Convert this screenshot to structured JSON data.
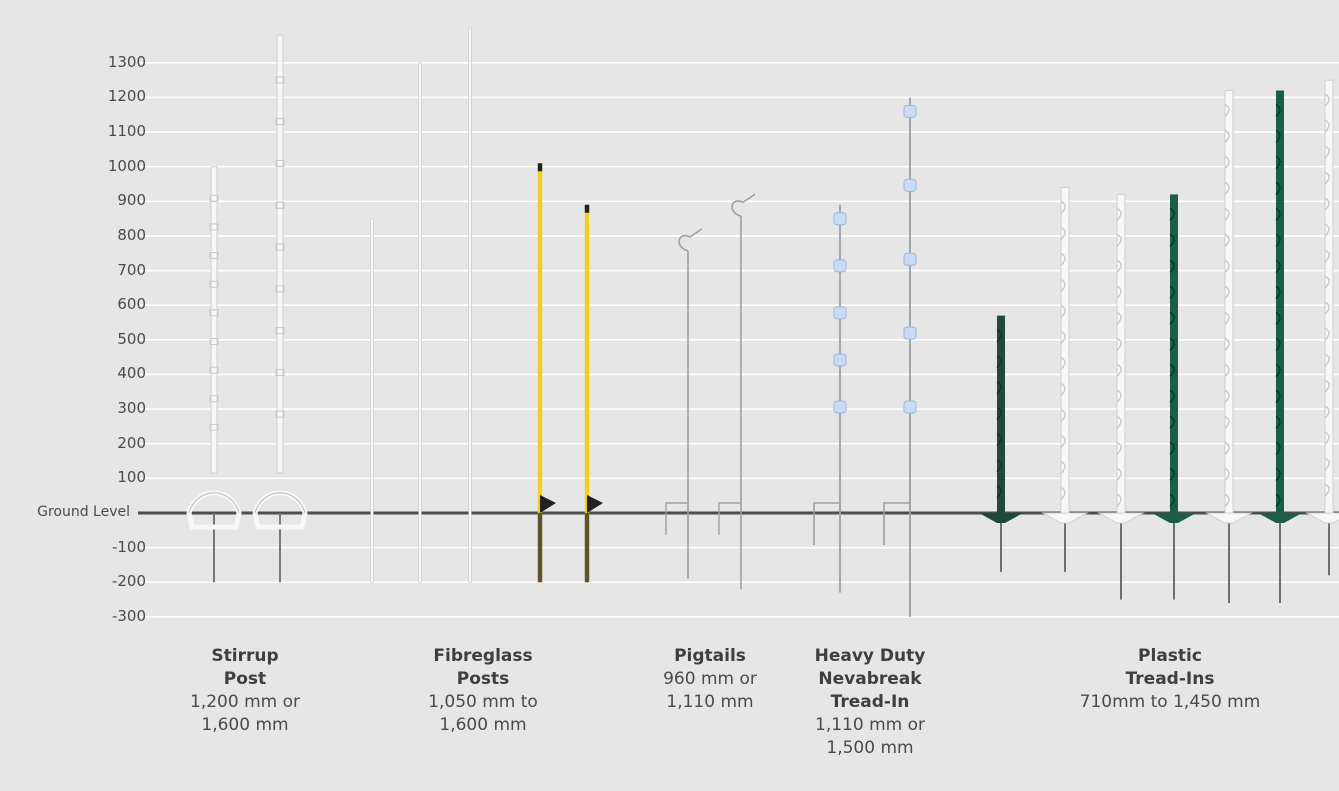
{
  "axis": {
    "ticks": [
      {
        "value": 1300,
        "label": "1300"
      },
      {
        "value": 1200,
        "label": "1200"
      },
      {
        "value": 1100,
        "label": "1100"
      },
      {
        "value": 1000,
        "label": "1000"
      },
      {
        "value": 900,
        "label": "900"
      },
      {
        "value": 800,
        "label": "800"
      },
      {
        "value": 700,
        "label": "700"
      },
      {
        "value": 600,
        "label": "600"
      },
      {
        "value": 500,
        "label": "500"
      },
      {
        "value": 400,
        "label": "400"
      },
      {
        "value": 300,
        "label": "300"
      },
      {
        "value": 200,
        "label": "200"
      },
      {
        "value": 100,
        "label": "100"
      },
      {
        "value": 0,
        "label": "Ground Level"
      },
      {
        "value": -100,
        "label": "-100"
      },
      {
        "value": -200,
        "label": "-200"
      },
      {
        "value": -300,
        "label": "-300"
      }
    ],
    "unit": "mm"
  },
  "colors": {
    "background": "#e6e6e6",
    "gridline": "#ffffff",
    "ground_line": "#4a4d52",
    "post_white": "#f7f7f7",
    "post_yellow": "#f2cf1d",
    "post_dark_green": "#1f4a3a",
    "post_green": "#1b5e47",
    "wire": "#9aa0a6",
    "insulator": "#c9dcf7"
  },
  "categories": [
    {
      "name_lines": [
        "Stirrup",
        "Post"
      ],
      "size_lines": [
        "1,200 mm or",
        "1,600 mm"
      ]
    },
    {
      "name_lines": [
        "Fibreglass",
        "Posts"
      ],
      "size_lines": [
        "1,050 mm to",
        "1,600 mm"
      ]
    },
    {
      "name_lines": [
        "Pigtails"
      ],
      "size_lines": [
        "960 mm or",
        "1,110 mm"
      ]
    },
    {
      "name_lines": [
        "Heavy Duty",
        "Nevabreak",
        "Tread-In"
      ],
      "size_lines": [
        "1,110 mm or",
        "1,500 mm"
      ]
    },
    {
      "name_lines": [
        "Plastic",
        "Tread-Ins"
      ],
      "size_lines": [
        "710mm to 1,450 mm"
      ]
    }
  ],
  "posts": [
    {
      "type": "stirrup",
      "color": "post_white",
      "top_mm": 1000,
      "bottom_mm": -200
    },
    {
      "type": "stirrup",
      "color": "post_white",
      "top_mm": 1380,
      "bottom_mm": -200
    },
    {
      "type": "fibreglass",
      "color": "post_white",
      "top_mm": 850,
      "bottom_mm": -200
    },
    {
      "type": "fibreglass",
      "color": "post_white",
      "top_mm": 1300,
      "bottom_mm": -200
    },
    {
      "type": "fibreglass",
      "color": "post_white",
      "top_mm": 1400,
      "bottom_mm": -200
    },
    {
      "type": "fibreglass_foot",
      "color": "post_yellow",
      "top_mm": 1010,
      "bottom_mm": -200
    },
    {
      "type": "fibreglass_foot",
      "color": "post_yellow",
      "top_mm": 890,
      "bottom_mm": -200
    },
    {
      "type": "pigtail",
      "color": "wire",
      "top_mm": 780,
      "bottom_mm": -190
    },
    {
      "type": "pigtail",
      "color": "wire",
      "top_mm": 880,
      "bottom_mm": -220
    },
    {
      "type": "nevabreak",
      "color": "wire",
      "top_mm": 890,
      "bottom_mm": -230
    },
    {
      "type": "nevabreak",
      "color": "wire",
      "top_mm": 1200,
      "bottom_mm": -300
    },
    {
      "type": "tread_in",
      "color": "post_dark_green",
      "top_mm": 570,
      "bottom_mm": -170
    },
    {
      "type": "tread_in",
      "color": "post_white",
      "top_mm": 940,
      "bottom_mm": -170
    },
    {
      "type": "tread_in",
      "color": "post_white",
      "top_mm": 920,
      "bottom_mm": -250
    },
    {
      "type": "tread_in",
      "color": "post_green",
      "top_mm": 920,
      "bottom_mm": -250
    },
    {
      "type": "tread_in",
      "color": "post_white",
      "top_mm": 1220,
      "bottom_mm": -260
    },
    {
      "type": "tread_in",
      "color": "post_green",
      "top_mm": 1220,
      "bottom_mm": -260
    },
    {
      "type": "tread_in",
      "color": "post_white",
      "top_mm": 1250,
      "bottom_mm": -180
    }
  ]
}
